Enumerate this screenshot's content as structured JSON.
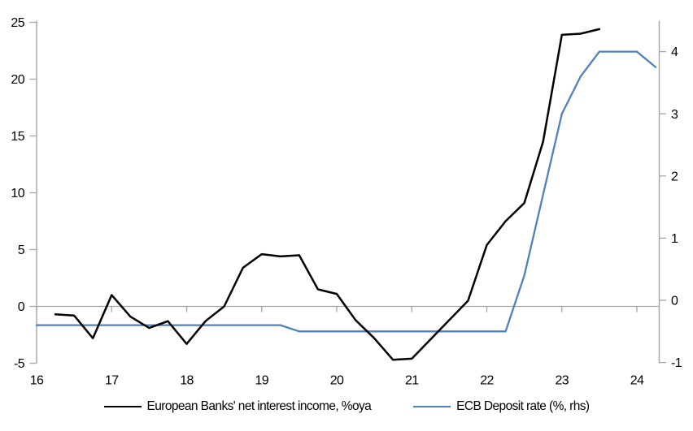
{
  "legend": {
    "series1_label": "European Banks' net interest income, %oya",
    "series2_label": "ECB Deposit rate (%, rhs)"
  },
  "colors": {
    "series1": "#000000",
    "series2": "#4f81bd",
    "axis": "#a6a6a6",
    "zero_gridline": "#a6a6a6",
    "text": "#000000",
    "background": "#ffffff"
  },
  "chart_data": {
    "type": "line",
    "title": "",
    "xlabel": "",
    "ylabel_left": "",
    "ylabel_right": "",
    "grid": "zero-line-only",
    "legend_position": "bottom-center",
    "x_axis": {
      "ticks": [
        16,
        17,
        18,
        19,
        20,
        21,
        22,
        23,
        24
      ],
      "range": [
        16,
        24.3
      ]
    },
    "left_axis": {
      "ticks": [
        25,
        20,
        15,
        10,
        5,
        0,
        -5
      ],
      "range": [
        -5,
        25
      ]
    },
    "right_axis": {
      "ticks": [
        4,
        3,
        2,
        1,
        0,
        -1
      ],
      "range": [
        -1.05,
        4.5
      ]
    },
    "series": [
      {
        "name": "European Banks' net interest income, %oya",
        "axis": "left",
        "color": "#000000",
        "points": [
          [
            16.25,
            -0.7
          ],
          [
            16.5,
            -0.8
          ],
          [
            16.75,
            -2.8
          ],
          [
            17.0,
            1.0
          ],
          [
            17.25,
            -0.9
          ],
          [
            17.5,
            -1.9
          ],
          [
            17.75,
            -1.3
          ],
          [
            18.0,
            -3.3
          ],
          [
            18.25,
            -1.3
          ],
          [
            18.5,
            0.0
          ],
          [
            18.75,
            3.4
          ],
          [
            19.0,
            4.6
          ],
          [
            19.25,
            4.4
          ],
          [
            19.5,
            4.5
          ],
          [
            19.75,
            1.5
          ],
          [
            20.0,
            1.1
          ],
          [
            20.25,
            -1.2
          ],
          [
            20.5,
            -2.8
          ],
          [
            20.75,
            -4.7
          ],
          [
            21.0,
            -4.6
          ],
          [
            21.25,
            -2.9
          ],
          [
            21.5,
            -1.2
          ],
          [
            21.75,
            0.5
          ],
          [
            22.0,
            5.4
          ],
          [
            22.25,
            7.5
          ],
          [
            22.5,
            9.1
          ],
          [
            22.75,
            14.5
          ],
          [
            23.0,
            23.9
          ],
          [
            23.25,
            24.0
          ],
          [
            23.5,
            24.4
          ]
        ]
      },
      {
        "name": "ECB Deposit rate (%, rhs)",
        "axis": "right",
        "color": "#4f81bd",
        "points": [
          [
            16.0,
            -0.4
          ],
          [
            19.25,
            -0.4
          ],
          [
            19.5,
            -0.5
          ],
          [
            22.25,
            -0.5
          ],
          [
            22.5,
            0.4
          ],
          [
            22.75,
            1.7
          ],
          [
            23.0,
            3.0
          ],
          [
            23.25,
            3.6
          ],
          [
            23.5,
            4.0
          ],
          [
            23.75,
            4.0
          ],
          [
            24.0,
            4.0
          ],
          [
            24.25,
            3.75
          ]
        ]
      }
    ]
  }
}
